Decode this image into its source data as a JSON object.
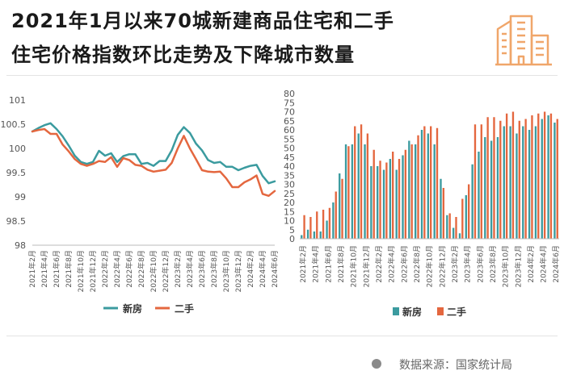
{
  "title": {
    "line1": "2021年1月以来70城新建商品住宅和二手",
    "line2": "住宅价格指数环比走势及下降城市数量"
  },
  "source": "数据来源：国家统计局",
  "colors": {
    "new": "#3b9b9f",
    "second": "#e4673f",
    "axis_text": "#555555",
    "logo": "#f0a66a",
    "gridline": "#e3e3e3"
  },
  "icons": {
    "logo": "building-icon"
  },
  "chart_data": [
    {
      "type": "line",
      "ylim": [
        98,
        101
      ],
      "yticks": [
        98,
        98.5,
        99,
        99.5,
        100,
        100.5,
        101
      ],
      "x": [
        "2021年2月",
        "2021年3月",
        "2021年4月",
        "2021年5月",
        "2021年6月",
        "2021年7月",
        "2021年8月",
        "2021年9月",
        "2021年10月",
        "2021年11月",
        "2021年12月",
        "2022年1月",
        "2022年2月",
        "2022年3月",
        "2022年4月",
        "2022年5月",
        "2022年6月",
        "2022年7月",
        "2022年8月",
        "2022年9月",
        "2022年10月",
        "2022年11月",
        "2022年12月",
        "2023年1月",
        "2023年2月",
        "2023年3月",
        "2023年4月",
        "2023年5月",
        "2023年6月",
        "2023年7月",
        "2023年8月",
        "2023年9月",
        "2023年10月",
        "2023年11月",
        "2023年12月",
        "2024年1月",
        "2024年2月",
        "2024年3月",
        "2024年4月",
        "2024年5月",
        "2024年6月"
      ],
      "xticks": [
        "2021年2月",
        "2021年4月",
        "2021年6月",
        "2021年8月",
        "2021年10月",
        "2021年12月",
        "2022年2月",
        "2022年4月",
        "2022年6月",
        "2022年8月",
        "2022年10月",
        "2022年12月",
        "2023年2月",
        "2023年4月",
        "2023年6月",
        "2023年8月",
        "2023年10月",
        "2023年12月",
        "2024年2月",
        "2024年4月",
        "2024年6月"
      ],
      "legend_position": "bottom",
      "series": [
        {
          "name": "新房",
          "values": [
            100.35,
            100.42,
            100.48,
            100.52,
            100.4,
            100.25,
            100.06,
            99.85,
            99.72,
            99.68,
            99.72,
            99.95,
            99.85,
            99.9,
            99.72,
            99.84,
            99.88,
            99.88,
            99.68,
            99.7,
            99.64,
            99.74,
            99.74,
            99.96,
            100.28,
            100.44,
            100.32,
            100.1,
            99.96,
            99.76,
            99.7,
            99.72,
            99.62,
            99.62,
            99.55,
            99.6,
            99.64,
            99.66,
            99.43,
            99.28,
            99.32
          ]
        },
        {
          "name": "二手",
          "values": [
            100.35,
            100.38,
            100.4,
            100.3,
            100.3,
            100.08,
            99.94,
            99.78,
            99.68,
            99.64,
            99.68,
            99.74,
            99.72,
            99.82,
            99.62,
            99.8,
            99.76,
            99.66,
            99.64,
            99.56,
            99.52,
            99.54,
            99.56,
            99.7,
            100.0,
            100.26,
            100.0,
            99.78,
            99.55,
            99.52,
            99.51,
            99.52,
            99.38,
            99.2,
            99.2,
            99.3,
            99.36,
            99.44,
            99.06,
            99.02,
            99.12
          ]
        }
      ]
    },
    {
      "type": "bar",
      "ylim": [
        0,
        80
      ],
      "yticks": [
        0,
        5,
        10,
        15,
        20,
        25,
        30,
        35,
        40,
        45,
        50,
        55,
        60,
        65,
        70,
        75,
        80
      ],
      "categories": [
        "2021年2月",
        "2021年3月",
        "2021年4月",
        "2021年5月",
        "2021年6月",
        "2021年7月",
        "2021年8月",
        "2021年9月",
        "2021年10月",
        "2021年11月",
        "2021年12月",
        "2022年1月",
        "2022年2月",
        "2022年3月",
        "2022年4月",
        "2022年5月",
        "2022年6月",
        "2022年7月",
        "2022年8月",
        "2022年9月",
        "2022年10月",
        "2022年11月",
        "2022年12月",
        "2023年1月",
        "2023年2月",
        "2023年3月",
        "2023年4月",
        "2023年5月",
        "2023年6月",
        "2023年7月",
        "2023年8月",
        "2023年9月",
        "2023年10月",
        "2023年11月",
        "2023年12月",
        "2024年1月",
        "2024年2月",
        "2024年3月",
        "2024年4月",
        "2024年5月",
        "2024年6月"
      ],
      "xticks": [
        "2021年2月",
        "2021年4月",
        "2021年6月",
        "2021年8月",
        "2021年10月",
        "2021年12月",
        "2022年2月",
        "2022年4月",
        "2022年6月",
        "2022年8月",
        "2022年10月",
        "2022年12月",
        "2023年2月",
        "2023年4月",
        "2023年6月",
        "2023年8月",
        "2023年10月",
        "2023年12月",
        "2024年2月",
        "2024年4月",
        "2024年6月"
      ],
      "legend_position": "bottom",
      "series": [
        {
          "name": "新房",
          "values": [
            2,
            5,
            4,
            4,
            10,
            20,
            36,
            52,
            52,
            58,
            52,
            40,
            40,
            38,
            44,
            38,
            46,
            54,
            52,
            60,
            58,
            52,
            33,
            13,
            6,
            3,
            24,
            41,
            48,
            56,
            54,
            56,
            62,
            62,
            58,
            62,
            60,
            62,
            66,
            68,
            64
          ]
        },
        {
          "name": "二手",
          "values": [
            13,
            12,
            15,
            16,
            17,
            26,
            33,
            51,
            62,
            63,
            58,
            49,
            43,
            42,
            48,
            44,
            49,
            52,
            57,
            62,
            62,
            61,
            28,
            14,
            12,
            22,
            30,
            63,
            63,
            67,
            67,
            65,
            69,
            70,
            65,
            66,
            68,
            69,
            70,
            69,
            66
          ]
        }
      ]
    }
  ]
}
